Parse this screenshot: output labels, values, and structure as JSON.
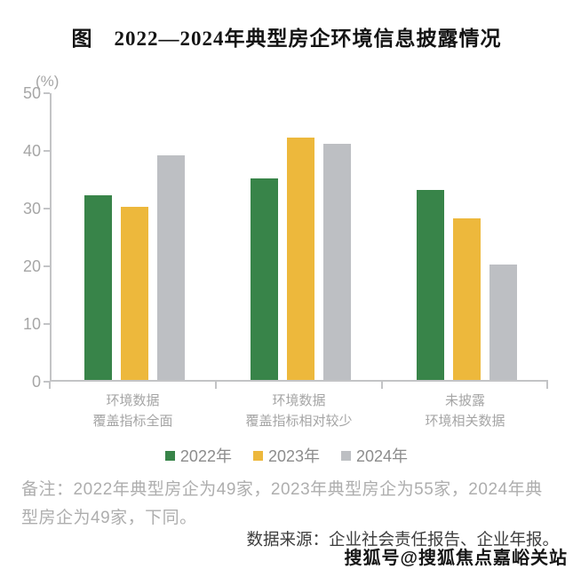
{
  "title": "图　2022—2024年典型房企环境信息披露情况",
  "chart_data": {
    "type": "bar",
    "title": "图　2022—2024年典型房企环境信息披露情况",
    "unit_label": "(%)",
    "xlabel": "",
    "ylabel": "(%)",
    "ylim": [
      0,
      50
    ],
    "yticks": [
      0,
      10,
      20,
      30,
      40,
      50
    ],
    "grid": false,
    "legend_position": "bottom",
    "categories": [
      [
        "环境数据",
        "覆盖指标全面"
      ],
      [
        "环境数据",
        "覆盖指标相对较少"
      ],
      [
        "未披露",
        "环境相关数据"
      ]
    ],
    "series": [
      {
        "name": "2022年",
        "color": "#388449",
        "values": [
          32,
          35,
          33
        ]
      },
      {
        "name": "2023年",
        "color": "#EDB83C",
        "values": [
          30,
          42,
          28
        ]
      },
      {
        "name": "2024年",
        "color": "#BDBFC3",
        "values": [
          39,
          41,
          20
        ]
      }
    ]
  },
  "note": "备注：2022年典型房企为49家，2023年典型房企为55家，2024年典型房企为49家，下同。",
  "source": "数据来源：企业社会责任报告、企业年报。",
  "watermark": "搜狐号@搜狐焦点嘉峪关站",
  "colors": {
    "axis": "#c3c4c6",
    "tick_text": "#a6a6a6",
    "category_text": "#a5a5a5",
    "legend_text": "#8c8c8c",
    "note_text": "#aeaeae",
    "source_text": "#3d3d3d",
    "title_text": "#141414"
  }
}
